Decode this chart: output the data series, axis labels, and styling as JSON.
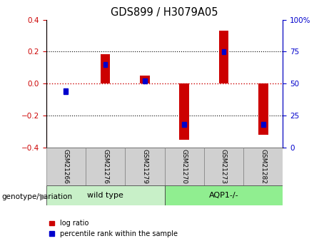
{
  "title": "GDS899 / H3079A05",
  "samples": [
    "GSM21266",
    "GSM21276",
    "GSM21279",
    "GSM21270",
    "GSM21273",
    "GSM21282"
  ],
  "log_ratios": [
    0.0,
    0.185,
    0.05,
    -0.35,
    0.33,
    -0.32
  ],
  "percentile_ranks": [
    44,
    65,
    52,
    18,
    75,
    18
  ],
  "ylim_left": [
    -0.4,
    0.4
  ],
  "ylim_right": [
    0,
    100
  ],
  "yticks_left": [
    -0.4,
    -0.2,
    0.0,
    0.2,
    0.4
  ],
  "yticks_right": [
    0,
    25,
    50,
    75,
    100
  ],
  "bar_color_red": "#cc0000",
  "bar_color_blue": "#0000cc",
  "bar_width": 0.25,
  "zero_line_color": "#cc0000",
  "grid_color": "#000000",
  "genotype_label": "genotype/variation",
  "background_color": "#ffffff",
  "tick_label_color_left": "#cc0000",
  "tick_label_color_right": "#0000cc",
  "group1_color": "#c8f0c8",
  "group2_color": "#90ee90",
  "sample_box_color": "#d0d0d0",
  "legend_red_label": "log ratio",
  "legend_blue_label": "percentile rank within the sample"
}
